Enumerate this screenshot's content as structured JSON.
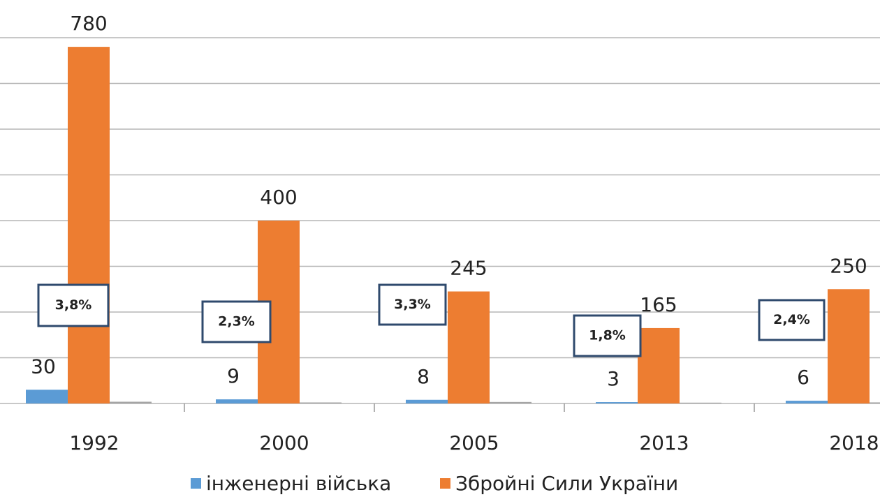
{
  "chart_data": {
    "type": "bar",
    "categories": [
      "1992",
      "2000",
      "2005",
      "2013",
      "2018"
    ],
    "series": [
      {
        "name": "інженерні війська",
        "color": "#5b9bd5",
        "values": [
          30,
          9,
          8,
          3,
          6
        ]
      },
      {
        "name": "Збройні Сили України",
        "color": "#ed7d31",
        "values": [
          780,
          400,
          245,
          165,
          250
        ]
      },
      {
        "color": "#a5a5a5",
        "values": [
          3.8,
          2.3,
          3.3,
          1.8,
          2.4
        ],
        "value_labels": [
          "3,8%",
          "2,3%",
          "3,3%",
          "1,8%",
          "2,4%"
        ]
      }
    ],
    "ylim": [
      0,
      800
    ],
    "yticks": [
      0,
      100,
      200,
      300,
      400,
      500,
      600,
      700,
      800
    ],
    "show_ytick_labels": false,
    "grid": true,
    "legend": "bottom"
  }
}
